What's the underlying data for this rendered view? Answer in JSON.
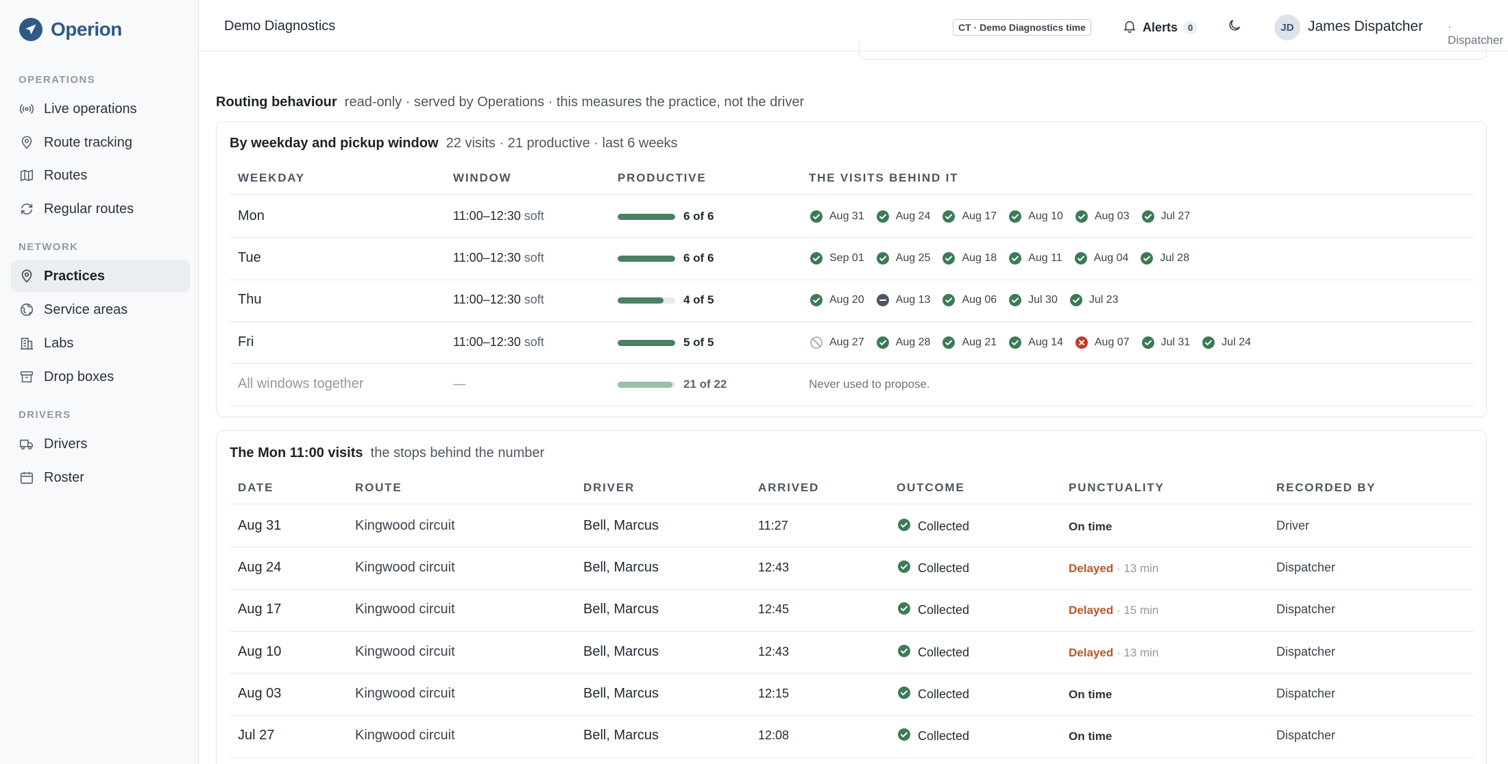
{
  "brand": {
    "name": "Operion"
  },
  "sidebar": {
    "sections": [
      {
        "label": "OPERATIONS",
        "items": [
          {
            "label": "Live operations",
            "icon": "broadcast-icon"
          },
          {
            "label": "Route tracking",
            "icon": "pin-icon"
          },
          {
            "label": "Routes",
            "icon": "map-icon"
          },
          {
            "label": "Regular routes",
            "icon": "repeat-icon"
          }
        ]
      },
      {
        "label": "NETWORK",
        "items": [
          {
            "label": "Practices",
            "icon": "pin-icon",
            "active": true
          },
          {
            "label": "Service areas",
            "icon": "globe-icon"
          },
          {
            "label": "Labs",
            "icon": "building-icon"
          },
          {
            "label": "Drop boxes",
            "icon": "archive-icon"
          }
        ]
      },
      {
        "label": "DRIVERS",
        "items": [
          {
            "label": "Drivers",
            "icon": "truck-icon"
          },
          {
            "label": "Roster",
            "icon": "calendar-icon"
          }
        ]
      }
    ]
  },
  "topbar": {
    "title": "Demo Diagnostics",
    "timezone": "CT · Demo Diagnostics time",
    "alerts_label": "Alerts",
    "alerts_count": "0",
    "user_initials": "JD",
    "user_name": "James Dispatcher",
    "user_role": "· Dispatcher"
  },
  "routing": {
    "title": "Routing behaviour",
    "subtitle": "read-only · served by Operations · this measures the practice, not the driver"
  },
  "weekday_card": {
    "title": "By weekday and pickup window",
    "subtitle": "22 visits · 21 productive · last 6 weeks",
    "headers": [
      "WEEKDAY",
      "WINDOW",
      "PRODUCTIVE",
      "THE VISITS BEHIND IT"
    ],
    "rows": [
      {
        "weekday": "Mon",
        "window": "11:00–12:30",
        "window_kind": "soft",
        "productive": "6 of 6",
        "ratio": 1.0,
        "visits": [
          {
            "date": "Aug 31",
            "status": "ok"
          },
          {
            "date": "Aug 24",
            "status": "ok"
          },
          {
            "date": "Aug 17",
            "status": "ok"
          },
          {
            "date": "Aug 10",
            "status": "ok"
          },
          {
            "date": "Aug 03",
            "status": "ok"
          },
          {
            "date": "Jul 27",
            "status": "ok"
          }
        ]
      },
      {
        "weekday": "Tue",
        "window": "11:00–12:30",
        "window_kind": "soft",
        "productive": "6 of 6",
        "ratio": 1.0,
        "visits": [
          {
            "date": "Sep 01",
            "status": "ok"
          },
          {
            "date": "Aug 25",
            "status": "ok"
          },
          {
            "date": "Aug 18",
            "status": "ok"
          },
          {
            "date": "Aug 11",
            "status": "ok"
          },
          {
            "date": "Aug 04",
            "status": "ok"
          },
          {
            "date": "Jul 28",
            "status": "ok"
          }
        ]
      },
      {
        "weekday": "Thu",
        "window": "11:00–12:30",
        "window_kind": "soft",
        "productive": "4 of 5",
        "ratio": 0.8,
        "visits": [
          {
            "date": "Aug 20",
            "status": "ok"
          },
          {
            "date": "Aug 13",
            "status": "minus"
          },
          {
            "date": "Aug 06",
            "status": "ok"
          },
          {
            "date": "Jul 30",
            "status": "ok"
          },
          {
            "date": "Jul 23",
            "status": "ok"
          }
        ]
      },
      {
        "weekday": "Fri",
        "window": "11:00–12:30",
        "window_kind": "soft",
        "productive": "5 of 5",
        "ratio": 1.0,
        "visits": [
          {
            "date": "Aug 27",
            "status": "skip"
          },
          {
            "date": "Aug 28",
            "status": "ok"
          },
          {
            "date": "Aug 21",
            "status": "ok"
          },
          {
            "date": "Aug 14",
            "status": "ok"
          },
          {
            "date": "Aug 07",
            "status": "fail"
          },
          {
            "date": "Jul 31",
            "status": "ok"
          },
          {
            "date": "Jul 24",
            "status": "ok"
          }
        ]
      }
    ],
    "summary": {
      "weekday": "All windows together",
      "window": "—",
      "productive": "21 of 22",
      "ratio": 0.955,
      "note": "Never used to propose."
    }
  },
  "visits_card": {
    "title": "The Mon 11:00 visits",
    "subtitle": "the stops behind the number",
    "headers": [
      "DATE",
      "ROUTE",
      "DRIVER",
      "ARRIVED",
      "OUTCOME",
      "PUNCTUALITY",
      "RECORDED BY"
    ],
    "rows": [
      {
        "date": "Aug 31",
        "route": "Kingwood circuit",
        "driver": "Bell, Marcus",
        "arrived": "11:27",
        "outcome": "Collected",
        "punctuality": "On time",
        "delay": "",
        "recorded_by": "Driver"
      },
      {
        "date": "Aug 24",
        "route": "Kingwood circuit",
        "driver": "Bell, Marcus",
        "arrived": "12:43",
        "outcome": "Collected",
        "punctuality": "Delayed",
        "delay": "· 13 min",
        "recorded_by": "Dispatcher"
      },
      {
        "date": "Aug 17",
        "route": "Kingwood circuit",
        "driver": "Bell, Marcus",
        "arrived": "12:45",
        "outcome": "Collected",
        "punctuality": "Delayed",
        "delay": "· 15 min",
        "recorded_by": "Dispatcher"
      },
      {
        "date": "Aug 10",
        "route": "Kingwood circuit",
        "driver": "Bell, Marcus",
        "arrived": "12:43",
        "outcome": "Collected",
        "punctuality": "Delayed",
        "delay": "· 13 min",
        "recorded_by": "Dispatcher"
      },
      {
        "date": "Aug 03",
        "route": "Kingwood circuit",
        "driver": "Bell, Marcus",
        "arrived": "12:15",
        "outcome": "Collected",
        "punctuality": "On time",
        "delay": "",
        "recorded_by": "Dispatcher"
      },
      {
        "date": "Jul 27",
        "route": "Kingwood circuit",
        "driver": "Bell, Marcus",
        "arrived": "12:08",
        "outcome": "Collected",
        "punctuality": "On time",
        "delay": "",
        "recorded_by": "Dispatcher"
      }
    ]
  },
  "colors": {
    "brand": "#2f5a86",
    "ok": "#3d7a57",
    "fail": "#c0392b",
    "late": "#b5562b"
  }
}
